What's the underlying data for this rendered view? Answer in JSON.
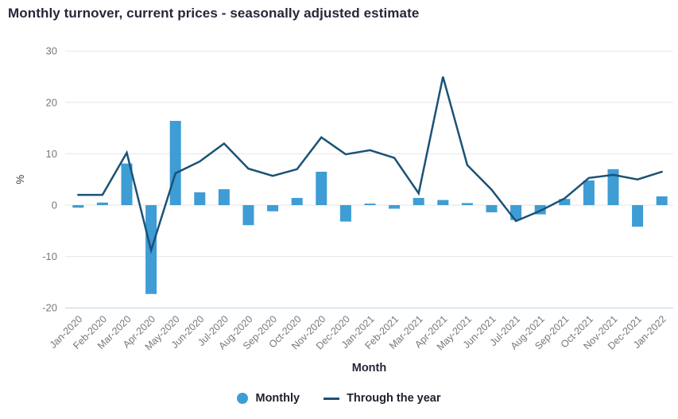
{
  "title": "Monthly turnover, current prices - seasonally adjusted estimate",
  "chart_data": {
    "type": "combo",
    "categories": [
      "Jan-2020",
      "Feb-2020",
      "Mar-2020",
      "Apr-2020",
      "May-2020",
      "Jun-2020",
      "Jul-2020",
      "Aug-2020",
      "Sep-2020",
      "Oct-2020",
      "Nov-2020",
      "Dec-2020",
      "Jan-2021",
      "Feb-2021",
      "Mar-2021",
      "Apr-2021",
      "May-2021",
      "Jun-2021",
      "Jul-2021",
      "Aug-2021",
      "Sep-2021",
      "Oct-2021",
      "Nov-2021",
      "Dec-2021",
      "Jan-2022"
    ],
    "series": [
      {
        "name": "Monthly",
        "type": "bar",
        "color": "#3e9dd5",
        "values": [
          -0.5,
          0.5,
          8.1,
          -17.3,
          16.4,
          2.5,
          3.1,
          -3.9,
          -1.2,
          1.4,
          6.5,
          -3.2,
          0.3,
          -0.7,
          1.4,
          1.0,
          0.4,
          -1.4,
          -2.9,
          -1.8,
          1.2,
          4.8,
          7.0,
          -4.2,
          1.7
        ]
      },
      {
        "name": "Through the year",
        "type": "line",
        "color": "#1b5276",
        "values": [
          2.0,
          2.0,
          10.2,
          -8.8,
          6.2,
          8.5,
          12.0,
          7.1,
          5.7,
          7.0,
          13.2,
          9.9,
          10.7,
          9.2,
          2.3,
          25.0,
          7.8,
          3.0,
          -3.1,
          -1.1,
          1.3,
          5.3,
          5.9,
          5.0,
          6.5
        ]
      }
    ],
    "xlabel": "Month",
    "ylabel": "%",
    "ylim": [
      -20,
      30
    ],
    "yticks": [
      30,
      20,
      10,
      0,
      -10,
      -20
    ],
    "grid": true,
    "legend_position": "bottom"
  },
  "colors": {
    "grid": "#e6e6e6",
    "baseline": "#b9d1e4",
    "tick_text": "#787878",
    "axis_title_text": "#3c3c46",
    "title_text": "#27273a"
  }
}
